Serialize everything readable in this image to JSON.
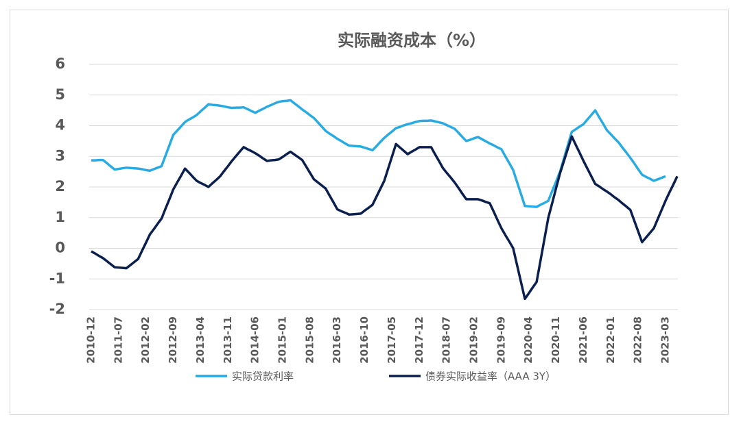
{
  "chart_data": {
    "type": "line",
    "title": "实际融资成本（%）",
    "categories": [
      "2010-12",
      null,
      null,
      null,
      null,
      null,
      null,
      "2011-07",
      null,
      null,
      null,
      null,
      null,
      null,
      "2012-02",
      null,
      null,
      null,
      null,
      null,
      null,
      "2012-09",
      null,
      null,
      null,
      null,
      null,
      null,
      "2013-04",
      null,
      null,
      null,
      null,
      null,
      null,
      "2013-11",
      null,
      null,
      null,
      null,
      null,
      null,
      "2014-06",
      null,
      null,
      null,
      null,
      null,
      null,
      "2015-01",
      null,
      null,
      null,
      null,
      null,
      null,
      "2015-08",
      null,
      null,
      null,
      null,
      null,
      null,
      "2016-03",
      null,
      null,
      null,
      null,
      null,
      null,
      "2016-10",
      null,
      null,
      null,
      null,
      null,
      null,
      "2017-05",
      null,
      null,
      null,
      null,
      null,
      null,
      "2017-12",
      null,
      null,
      null,
      null,
      null,
      null,
      "2018-07",
      null,
      null,
      null,
      null,
      null,
      null,
      "2019-02",
      null,
      null,
      null,
      null,
      null,
      null,
      "2019-09",
      null,
      null,
      null,
      null,
      null,
      null,
      "2020-04",
      null,
      null,
      null,
      null,
      null,
      null,
      "2020-11",
      null,
      null,
      null,
      null,
      null,
      null,
      "2021-06",
      null,
      null,
      null,
      null,
      null,
      null,
      "2022-01",
      null,
      null,
      null,
      null,
      null,
      null,
      "2022-08",
      null,
      null,
      null,
      null,
      null,
      null,
      "2023-03",
      null,
      null,
      null
    ],
    "series": [
      {
        "name": "实际贷款利率",
        "color": "#29abe2",
        "values": [
          2.87,
          2.87,
          2.88,
          2.88,
          2.78,
          2.67,
          2.57,
          2.59,
          2.61,
          2.63,
          2.62,
          2.61,
          2.6,
          2.58,
          2.55,
          2.53,
          2.58,
          2.63,
          2.68,
          3.02,
          3.36,
          3.7,
          3.84,
          3.98,
          4.12,
          4.2,
          4.27,
          4.35,
          4.47,
          4.58,
          4.7,
          4.68,
          4.67,
          4.65,
          4.63,
          4.6,
          4.58,
          4.59,
          4.59,
          4.6,
          4.54,
          4.48,
          4.42,
          4.49,
          4.55,
          4.62,
          4.67,
          4.73,
          4.78,
          4.8,
          4.81,
          4.83,
          4.73,
          4.63,
          4.53,
          4.44,
          4.34,
          4.25,
          4.11,
          3.97,
          3.83,
          3.74,
          3.66,
          3.57,
          3.5,
          3.42,
          3.35,
          3.34,
          3.33,
          3.32,
          3.28,
          3.24,
          3.2,
          3.33,
          3.47,
          3.6,
          3.71,
          3.81,
          3.92,
          3.96,
          4.01,
          4.05,
          4.08,
          4.12,
          4.15,
          4.16,
          4.16,
          4.17,
          4.14,
          4.11,
          4.08,
          4.02,
          3.96,
          3.9,
          3.77,
          3.63,
          3.5,
          3.54,
          3.59,
          3.63,
          3.56,
          3.49,
          3.42,
          3.36,
          3.29,
          3.23,
          3.0,
          2.78,
          2.55,
          2.16,
          1.77,
          1.38,
          1.37,
          1.36,
          1.35,
          1.42,
          1.48,
          1.55,
          1.87,
          2.18,
          2.5,
          2.93,
          3.37,
          3.8,
          3.88,
          3.97,
          4.05,
          4.2,
          4.35,
          4.5,
          4.28,
          4.07,
          3.85,
          3.72,
          3.58,
          3.45,
          3.28,
          3.12,
          2.95,
          2.77,
          2.58,
          2.4,
          2.33,
          2.27,
          2.2,
          2.25,
          2.3,
          2.35,
          null,
          null,
          null
        ]
      },
      {
        "name": "债券实际收益率（AAA 3Y）",
        "color": "#0b1f4e",
        "values": [
          -0.1,
          -0.17,
          -0.25,
          -0.32,
          -0.42,
          -0.52,
          -0.62,
          -0.63,
          -0.64,
          -0.65,
          -0.55,
          -0.45,
          -0.35,
          -0.08,
          0.18,
          0.45,
          0.62,
          0.8,
          0.97,
          1.29,
          1.6,
          1.92,
          2.15,
          2.37,
          2.6,
          2.47,
          2.33,
          2.2,
          2.13,
          2.07,
          2.0,
          2.12,
          2.23,
          2.35,
          2.52,
          2.68,
          2.85,
          3.0,
          3.15,
          3.3,
          3.23,
          3.17,
          3.1,
          3.02,
          2.93,
          2.85,
          2.87,
          2.88,
          2.9,
          2.98,
          3.07,
          3.15,
          3.06,
          2.97,
          2.88,
          2.67,
          2.46,
          2.25,
          2.15,
          2.05,
          1.95,
          1.72,
          1.5,
          1.27,
          1.21,
          1.16,
          1.1,
          1.11,
          1.12,
          1.13,
          1.23,
          1.32,
          1.42,
          1.68,
          1.94,
          2.2,
          2.6,
          3.0,
          3.4,
          3.29,
          3.18,
          3.07,
          3.15,
          3.22,
          3.3,
          3.3,
          3.3,
          3.3,
          3.07,
          2.85,
          2.62,
          2.46,
          2.31,
          2.15,
          1.97,
          1.78,
          1.6,
          1.6,
          1.6,
          1.6,
          1.56,
          1.51,
          1.47,
          1.2,
          0.92,
          0.65,
          0.43,
          0.22,
          0,
          -0.55,
          -1.1,
          -1.65,
          -1.47,
          -1.28,
          -1.1,
          -0.4,
          0.3,
          1.0,
          1.48,
          1.97,
          2.45,
          2.85,
          3.25,
          3.65,
          3.38,
          3.12,
          2.85,
          2.6,
          2.35,
          2.1,
          2.02,
          1.93,
          1.85,
          1.76,
          1.66,
          1.57,
          1.46,
          1.36,
          1.25,
          0.9,
          0.55,
          0.2,
          0.35,
          0.5,
          0.65,
          0.95,
          1.25,
          1.55,
          1.82,
          2.08,
          2.35
        ]
      }
    ],
    "ylim": [
      -2,
      6
    ],
    "yticks": [
      -2,
      -1,
      0,
      1,
      2,
      3,
      4,
      5,
      6
    ],
    "grid": true,
    "legend": "bottom"
  }
}
